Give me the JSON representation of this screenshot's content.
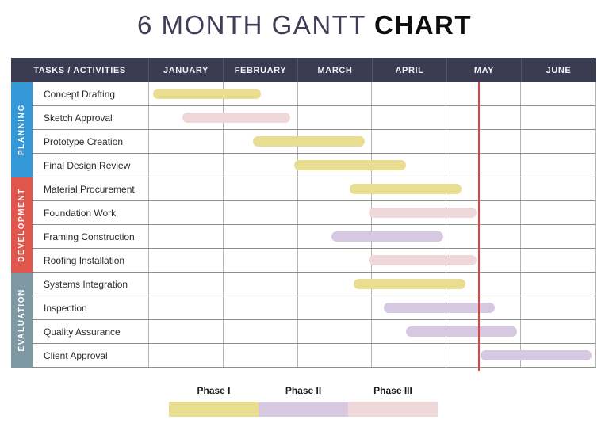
{
  "title": {
    "regular": "6 MONTH GANTT ",
    "bold": "CHART"
  },
  "table_header": {
    "tasks_label": "TASKS / ACTIVITIES",
    "months": [
      "JANUARY",
      "FEBRUARY",
      "MARCH",
      "APRIL",
      "MAY",
      "JUNE"
    ]
  },
  "phases": {
    "phase1": {
      "label": "Phase I",
      "color": "#e9dd92"
    },
    "phase2": {
      "label": "Phase II",
      "color": "#d6c8e1"
    },
    "phase3": {
      "label": "Phase III",
      "color": "#eed8da"
    }
  },
  "legend": {
    "items": [
      {
        "label": "Phase I",
        "color": "#e9dd92"
      },
      {
        "label": "Phase II",
        "color": "#d6c8e1"
      },
      {
        "label": "Phase III",
        "color": "#eed8da"
      }
    ]
  },
  "colors": {
    "header_bg": "#3b3b52",
    "planning": "#3598d6",
    "development": "#e0564c",
    "evaluation": "#7f99a4",
    "today_line": "#e8403a",
    "title_accent": "#3e3e56"
  },
  "chart_data": {
    "type": "bar",
    "subtype": "gantt",
    "title": "6 MONTH GANTT CHART",
    "categories": [
      "JANUARY",
      "FEBRUARY",
      "MARCH",
      "APRIL",
      "MAY",
      "JUNE"
    ],
    "x_range_months": [
      0,
      6
    ],
    "today_marker_month": 4.43,
    "legend": [
      "Phase I",
      "Phase II",
      "Phase III"
    ],
    "groups": [
      {
        "name": "PLANNING",
        "color": "#3598d6",
        "tasks": [
          {
            "label": "Concept Drafting",
            "phase": "phase1",
            "start_month": 0.05,
            "end_month": 1.5
          },
          {
            "label": "Sketch Approval",
            "phase": "phase3",
            "start_month": 0.45,
            "end_month": 1.9
          },
          {
            "label": "Prototype Creation",
            "phase": "phase1",
            "start_month": 1.4,
            "end_month": 2.9
          },
          {
            "label": "Final Design Review",
            "phase": "phase1",
            "start_month": 1.95,
            "end_month": 3.45
          }
        ]
      },
      {
        "name": "DEVELOPMENT",
        "color": "#e0564c",
        "tasks": [
          {
            "label": "Material Procurement",
            "phase": "phase1",
            "start_month": 2.7,
            "end_month": 4.2
          },
          {
            "label": "Foundation Work",
            "phase": "phase3",
            "start_month": 2.95,
            "end_month": 4.4
          },
          {
            "label": "Framing Construction",
            "phase": "phase2",
            "start_month": 2.45,
            "end_month": 3.95
          },
          {
            "label": "Roofing Installation",
            "phase": "phase3",
            "start_month": 2.95,
            "end_month": 4.4
          }
        ]
      },
      {
        "name": "EVALUATION",
        "color": "#7f99a4",
        "tasks": [
          {
            "label": "Systems Integration",
            "phase": "phase1",
            "start_month": 2.75,
            "end_month": 4.25
          },
          {
            "label": "Inspection",
            "phase": "phase2",
            "start_month": 3.15,
            "end_month": 4.65
          },
          {
            "label": "Quality Assurance",
            "phase": "phase2",
            "start_month": 3.45,
            "end_month": 4.95
          },
          {
            "label": "Client Approval",
            "phase": "phase2",
            "start_month": 4.45,
            "end_month": 5.95
          }
        ]
      }
    ]
  }
}
